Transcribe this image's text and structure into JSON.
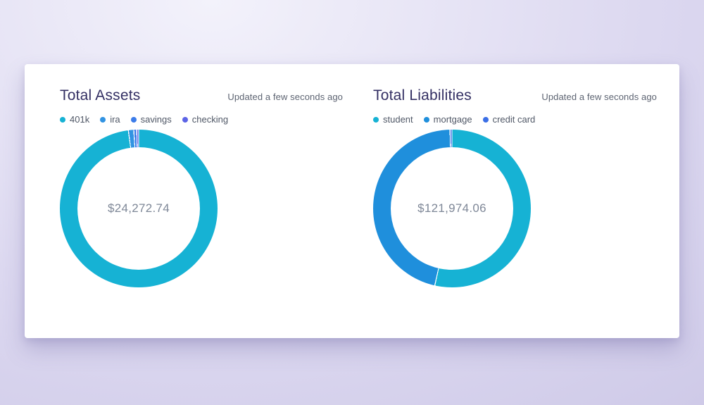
{
  "theme": {
    "card_background": "#ffffff",
    "page_background_light": "#f3f2fb",
    "page_background_dark": "#c8c3e4",
    "title_color": "#332f63",
    "updated_text_color": "#5d6472",
    "legend_text_color": "#4f5766",
    "center_value_color": "#7e8797"
  },
  "chart_data": [
    {
      "type": "donut",
      "title": "Total Assets",
      "updated": "Updated a few seconds ago",
      "center_label": "$24,272.74",
      "total_value": 24272.74,
      "legend_position": "top",
      "segments": [
        {
          "label": "401k",
          "percent_estimate": 97.9,
          "color": "#16b2d4"
        },
        {
          "label": "ira",
          "percent_estimate": 1.1,
          "color": "#3193e2"
        },
        {
          "label": "savings",
          "percent_estimate": 0.6,
          "color": "#3c7ce9"
        },
        {
          "label": "checking",
          "percent_estimate": 0.4,
          "color": "#5c64e6"
        }
      ]
    },
    {
      "type": "donut",
      "title": "Total Liabilities",
      "updated": "Updated a few seconds ago",
      "center_label": "$121,974.06",
      "total_value": 121974.06,
      "legend_position": "top",
      "segments": [
        {
          "label": "student",
          "percent_estimate": 53.5,
          "color": "#16b2d4"
        },
        {
          "label": "mortgage",
          "percent_estimate": 46.1,
          "color": "#1f8fdc"
        },
        {
          "label": "credit card",
          "percent_estimate": 0.4,
          "color": "#3b6fe6"
        }
      ]
    }
  ]
}
